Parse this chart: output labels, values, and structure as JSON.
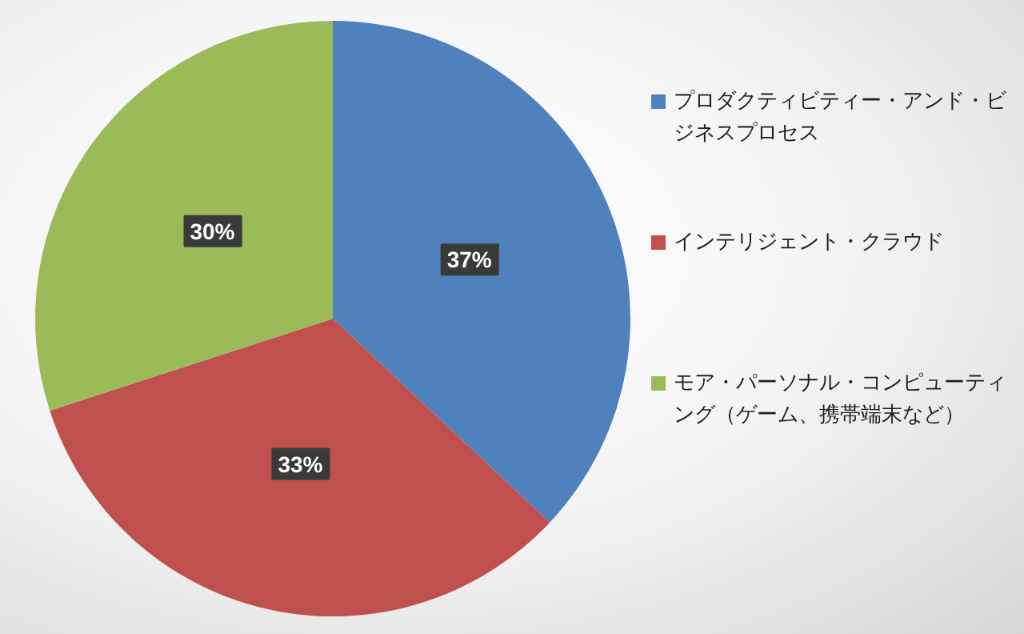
{
  "chart_data": {
    "type": "pie",
    "categories": [
      "プロダクティビティー・アンド・ビジネスプロセス",
      "インテリジェント・クラウド",
      "モア・パーソナル・コンピューティング（ゲーム、携帯端末など）"
    ],
    "values": [
      37,
      33,
      30
    ],
    "colors": [
      "#4f81bd",
      "#c0504d",
      "#9bbb59"
    ],
    "value_labels": [
      "37%",
      "33%",
      "30%"
    ],
    "legend": "right"
  }
}
